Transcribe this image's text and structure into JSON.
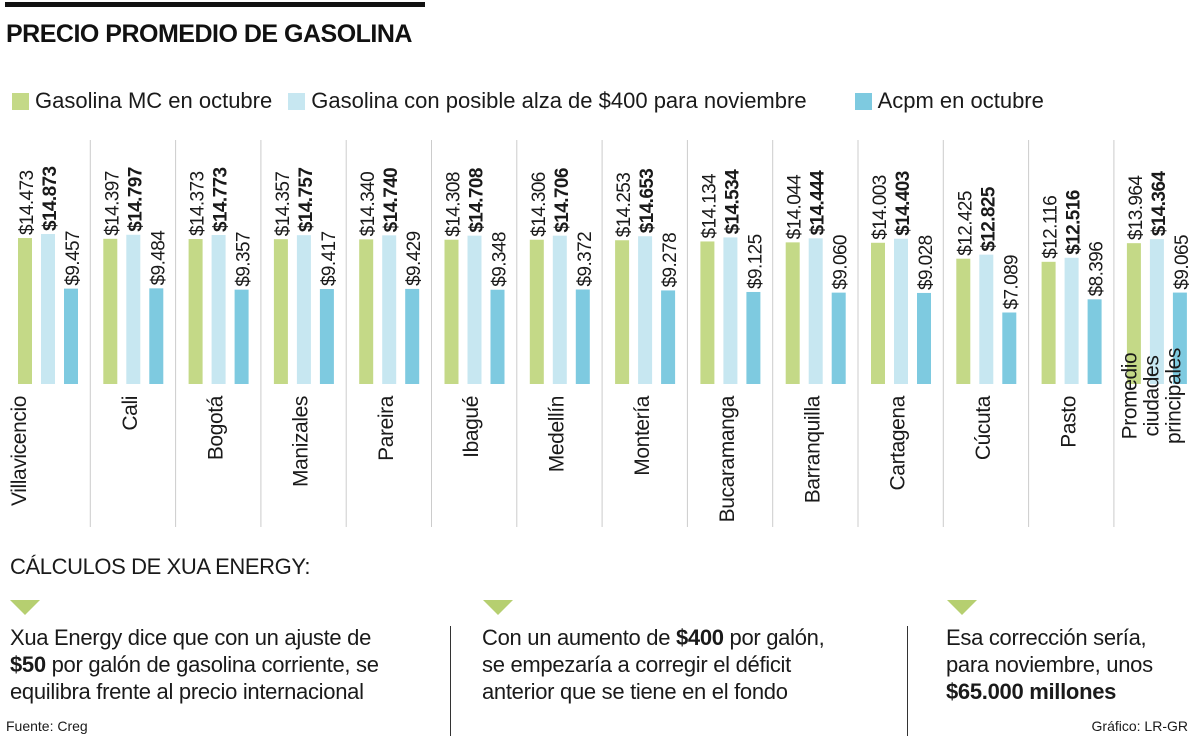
{
  "header": {
    "title": "PRECIO PROMEDIO DE GASOLINA"
  },
  "colors": {
    "gasolina_mc": "#c4d987",
    "alza": "#c7e7f1",
    "acpm": "#7ecae0",
    "divider": "#cccccc",
    "triangle": "#b6cf70"
  },
  "chart_data": {
    "type": "bar",
    "title": "PRECIO PROMEDIO DE GASOLINA",
    "legend_position": "top",
    "grid": false,
    "categories": [
      "Villavicencio",
      "Cali",
      "Bogotá",
      "Manizales",
      "Pareira",
      "Ibagué",
      "Medellín",
      "Montería",
      "Bucaramanga",
      "Barranquilla",
      "Cartagena",
      "Cúcuta",
      "Pasto",
      "Promedio\nciudades\nprincipales"
    ],
    "series": [
      {
        "name": "Gasolina MC en octubre",
        "values": [
          14473,
          14397,
          14373,
          14357,
          14340,
          14308,
          14306,
          14253,
          14134,
          14044,
          14003,
          12425,
          12116,
          13964
        ],
        "labels": [
          "$14.473",
          "$14.397",
          "$14.373",
          "$14.357",
          "$14.340",
          "$14.308",
          "$14.306",
          "$14.253",
          "$14.134",
          "$14.044",
          "$14.003",
          "$12.425",
          "$12.116",
          "$13.964"
        ]
      },
      {
        "name": "Gasolina con posible alza de $400 para noviembre",
        "values": [
          14873,
          14797,
          14773,
          14757,
          14740,
          14708,
          14706,
          14653,
          14534,
          14444,
          14403,
          12825,
          12516,
          14364
        ],
        "labels": [
          "$14.873",
          "$14.797",
          "$14.773",
          "$14.757",
          "$14.740",
          "$14.708",
          "$14.706",
          "$14.653",
          "$14.534",
          "$14.444",
          "$14.403",
          "$12.825",
          "$12.516",
          "$14.364"
        ]
      },
      {
        "name": "Acpm en octubre",
        "values": [
          9457,
          9484,
          9357,
          9417,
          9429,
          9348,
          9372,
          9278,
          9125,
          9060,
          9028,
          7089,
          8396,
          9065
        ],
        "labels": [
          "$9.457",
          "$9.484",
          "$9.357",
          "$9.417",
          "$9.429",
          "$9.348",
          "$9.372",
          "$9.278",
          "$9.125",
          "$9.060",
          "$9.028",
          "$7.089",
          "$8.396",
          "$9.065"
        ]
      }
    ],
    "ylim": [
      0,
      14873
    ]
  },
  "calc_title": "CÁLCULOS DE XUA ENERGY:",
  "notes": [
    {
      "lines": [
        [
          {
            "text": "Xua Energy dice que con un ajuste de",
            "bold": false
          }
        ],
        [
          {
            "text": "$50",
            "bold": true
          },
          {
            "text": " por galón de gasolina corriente, se",
            "bold": false
          }
        ],
        [
          {
            "text": "equilibra frente al precio internacional",
            "bold": false
          }
        ]
      ]
    },
    {
      "lines": [
        [
          {
            "text": "Con un aumento de ",
            "bold": false
          },
          {
            "text": "$400",
            "bold": true
          },
          {
            "text": " por galón,",
            "bold": false
          }
        ],
        [
          {
            "text": "se empezaría a corregir el déficit",
            "bold": false
          }
        ],
        [
          {
            "text": "anterior que se tiene en el fondo",
            "bold": false
          }
        ]
      ]
    },
    {
      "lines": [
        [
          {
            "text": "Esa corrección sería,",
            "bold": false
          }
        ],
        [
          {
            "text": "para noviembre, unos",
            "bold": false
          }
        ],
        [
          {
            "text": "$65.000 millones",
            "bold": true
          }
        ]
      ]
    }
  ],
  "footer": {
    "source": "Fuente: Creg",
    "credit": "Gráfico: LR-GR"
  }
}
